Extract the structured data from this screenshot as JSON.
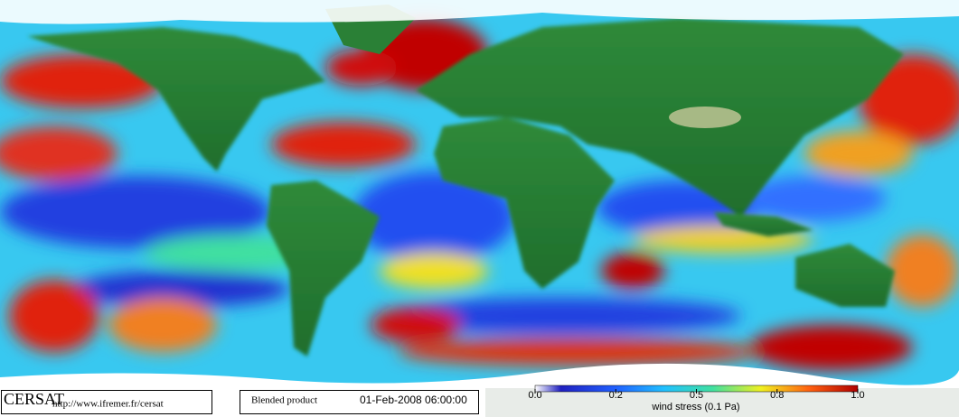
{
  "brand": "CERSAT",
  "url": "http://www.ifremer.fr/cersat",
  "product": "Blended product",
  "date": "01-Feb-2008 06:00:00",
  "colorbar": {
    "label": "wind stress (0.1 Pa)",
    "ticks": [
      {
        "value": 0,
        "label": "0.0"
      },
      0.2,
      0.5,
      0.8,
      {
        "value": 1,
        "label": "1.0"
      }
    ]
  }
}
